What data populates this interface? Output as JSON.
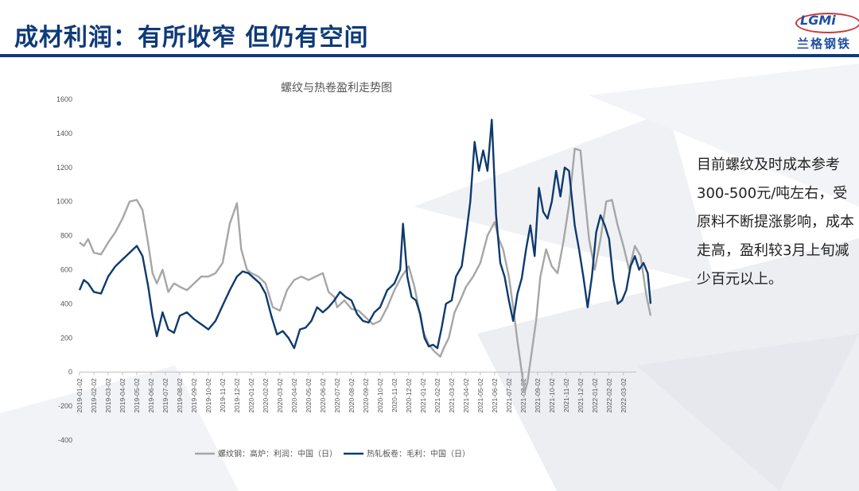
{
  "page": {
    "title": "成材利润：有所收窄  但仍有空间",
    "logo_top": "LGMi",
    "logo_bottom": "兰格钢铁",
    "side_text": "目前螺纹及时成本参考300-500元/吨左右，受原料不断提涨影响，成本走高，盈利较3月上旬减少百元以上。",
    "colors": {
      "brand": "#0e3a78",
      "rebar": "#a6a6a6",
      "hrc": "#0e3a6e"
    }
  },
  "chart_data": {
    "type": "line",
    "title": "螺纹与热卷盈利走势图",
    "ylim": [
      -400,
      1600
    ],
    "yticks": [
      -400,
      -200,
      0,
      200,
      400,
      600,
      800,
      1000,
      1200,
      1400,
      1600
    ],
    "xticks": [
      "2019-01-02",
      "2019-02-02",
      "2019-03-02",
      "2019-04-02",
      "2019-05-02",
      "2019-06-02",
      "2019-07-02",
      "2019-08-02",
      "2019-09-02",
      "2019-10-02",
      "2019-11-02",
      "2019-12-02",
      "2020-01-02",
      "2020-02-02",
      "2020-03-02",
      "2020-04-02",
      "2020-05-02",
      "2020-06-02",
      "2020-07-02",
      "2020-08-02",
      "2020-09-02",
      "2020-10-02",
      "2020-11-02",
      "2020-12-02",
      "2021-01-02",
      "2021-02-02",
      "2021-03-02",
      "2021-04-02",
      "2021-05-02",
      "2021-06-02",
      "2021-07-02",
      "2021-08-02",
      "2021-09-02",
      "2021-10-02",
      "2021-11-02",
      "2021-12-02",
      "2022-01-02",
      "2022-02-02",
      "2022-03-02"
    ],
    "legend_position": "bottom",
    "series": [
      {
        "name": "螺纹钢：高炉：利润：中国（日）",
        "color": "#a6a6a6",
        "points": [
          [
            0,
            760
          ],
          [
            0.3,
            740
          ],
          [
            0.6,
            780
          ],
          [
            1,
            700
          ],
          [
            1.5,
            690
          ],
          [
            2,
            760
          ],
          [
            2.5,
            820
          ],
          [
            3,
            900
          ],
          [
            3.5,
            1000
          ],
          [
            4,
            1010
          ],
          [
            4.4,
            950
          ],
          [
            4.8,
            750
          ],
          [
            5.1,
            580
          ],
          [
            5.4,
            520
          ],
          [
            5.8,
            600
          ],
          [
            6.2,
            470
          ],
          [
            6.6,
            520
          ],
          [
            7,
            500
          ],
          [
            7.5,
            480
          ],
          [
            8,
            520
          ],
          [
            8.5,
            560
          ],
          [
            9,
            560
          ],
          [
            9.5,
            580
          ],
          [
            10,
            640
          ],
          [
            10.5,
            870
          ],
          [
            11,
            990
          ],
          [
            11.3,
            720
          ],
          [
            11.7,
            600
          ],
          [
            12,
            580
          ],
          [
            12.5,
            560
          ],
          [
            13,
            520
          ],
          [
            13.5,
            380
          ],
          [
            14,
            360
          ],
          [
            14.5,
            480
          ],
          [
            15,
            540
          ],
          [
            15.5,
            560
          ],
          [
            16,
            540
          ],
          [
            16.5,
            560
          ],
          [
            17,
            580
          ],
          [
            17.4,
            470
          ],
          [
            17.8,
            440
          ],
          [
            18,
            380
          ],
          [
            18.5,
            420
          ],
          [
            19,
            370
          ],
          [
            19.5,
            360
          ],
          [
            20,
            320
          ],
          [
            20.5,
            280
          ],
          [
            21,
            300
          ],
          [
            21.5,
            380
          ],
          [
            22,
            480
          ],
          [
            22.5,
            560
          ],
          [
            23,
            620
          ],
          [
            23.4,
            500
          ],
          [
            23.8,
            330
          ],
          [
            24,
            240
          ],
          [
            24.4,
            160
          ],
          [
            24.8,
            120
          ],
          [
            25.2,
            90
          ],
          [
            25.5,
            150
          ],
          [
            25.8,
            200
          ],
          [
            26.2,
            350
          ],
          [
            26.6,
            420
          ],
          [
            27,
            500
          ],
          [
            27.5,
            560
          ],
          [
            28,
            640
          ],
          [
            28.5,
            800
          ],
          [
            29,
            880
          ],
          [
            29.3,
            780
          ],
          [
            29.6,
            720
          ],
          [
            30,
            560
          ],
          [
            30.3,
            380
          ],
          [
            30.6,
            180
          ],
          [
            30.9,
            0
          ],
          [
            31.1,
            -120
          ],
          [
            31.3,
            -60
          ],
          [
            31.6,
            120
          ],
          [
            31.9,
            300
          ],
          [
            32.2,
            560
          ],
          [
            32.6,
            720
          ],
          [
            33,
            620
          ],
          [
            33.4,
            580
          ],
          [
            33.8,
            760
          ],
          [
            34.2,
            980
          ],
          [
            34.6,
            1310
          ],
          [
            35,
            1300
          ],
          [
            35.3,
            1030
          ],
          [
            35.6,
            780
          ],
          [
            36,
            600
          ],
          [
            36.4,
            780
          ],
          [
            36.8,
            1000
          ],
          [
            37.2,
            1010
          ],
          [
            37.6,
            860
          ],
          [
            38,
            740
          ],
          [
            38.4,
            600
          ],
          [
            38.8,
            740
          ],
          [
            39.2,
            680
          ],
          [
            39.6,
            450
          ],
          [
            39.9,
            330
          ]
        ]
      },
      {
        "name": "热轧板卷：毛利：中国（日）",
        "color": "#0e3a6e",
        "points": [
          [
            0,
            480
          ],
          [
            0.3,
            540
          ],
          [
            0.6,
            520
          ],
          [
            1,
            470
          ],
          [
            1.5,
            460
          ],
          [
            2,
            560
          ],
          [
            2.5,
            620
          ],
          [
            3,
            660
          ],
          [
            3.5,
            700
          ],
          [
            4,
            740
          ],
          [
            4.4,
            680
          ],
          [
            4.8,
            500
          ],
          [
            5.1,
            330
          ],
          [
            5.4,
            210
          ],
          [
            5.8,
            350
          ],
          [
            6.2,
            250
          ],
          [
            6.6,
            230
          ],
          [
            7,
            330
          ],
          [
            7.5,
            350
          ],
          [
            8,
            310
          ],
          [
            8.5,
            280
          ],
          [
            9,
            250
          ],
          [
            9.5,
            300
          ],
          [
            10,
            390
          ],
          [
            10.5,
            480
          ],
          [
            11,
            560
          ],
          [
            11.4,
            590
          ],
          [
            11.8,
            580
          ],
          [
            12.2,
            550
          ],
          [
            12.6,
            520
          ],
          [
            13,
            460
          ],
          [
            13.4,
            330
          ],
          [
            13.8,
            220
          ],
          [
            14.2,
            240
          ],
          [
            14.6,
            200
          ],
          [
            15,
            140
          ],
          [
            15.4,
            250
          ],
          [
            15.8,
            260
          ],
          [
            16.2,
            300
          ],
          [
            16.6,
            380
          ],
          [
            17,
            350
          ],
          [
            17.4,
            380
          ],
          [
            17.8,
            420
          ],
          [
            18.2,
            470
          ],
          [
            18.6,
            440
          ],
          [
            19,
            420
          ],
          [
            19.4,
            340
          ],
          [
            19.8,
            300
          ],
          [
            20.2,
            290
          ],
          [
            20.6,
            350
          ],
          [
            21,
            380
          ],
          [
            21.5,
            480
          ],
          [
            22,
            520
          ],
          [
            22.4,
            600
          ],
          [
            22.6,
            870
          ],
          [
            22.9,
            560
          ],
          [
            23.2,
            440
          ],
          [
            23.5,
            420
          ],
          [
            23.8,
            340
          ],
          [
            24.1,
            200
          ],
          [
            24.4,
            150
          ],
          [
            24.7,
            160
          ],
          [
            25,
            140
          ],
          [
            25.3,
            260
          ],
          [
            25.6,
            400
          ],
          [
            26,
            420
          ],
          [
            26.3,
            560
          ],
          [
            26.7,
            620
          ],
          [
            27,
            800
          ],
          [
            27.3,
            1000
          ],
          [
            27.6,
            1350
          ],
          [
            27.9,
            1180
          ],
          [
            28.2,
            1300
          ],
          [
            28.5,
            1180
          ],
          [
            28.8,
            1480
          ],
          [
            29.1,
            920
          ],
          [
            29.4,
            640
          ],
          [
            29.7,
            560
          ],
          [
            30,
            420
          ],
          [
            30.3,
            300
          ],
          [
            30.6,
            460
          ],
          [
            30.9,
            550
          ],
          [
            31.2,
            720
          ],
          [
            31.5,
            860
          ],
          [
            31.8,
            680
          ],
          [
            32.1,
            1080
          ],
          [
            32.4,
            940
          ],
          [
            32.7,
            900
          ],
          [
            33,
            1000
          ],
          [
            33.3,
            1180
          ],
          [
            33.6,
            1030
          ],
          [
            33.9,
            1200
          ],
          [
            34.2,
            1180
          ],
          [
            34.6,
            860
          ],
          [
            34.9,
            720
          ],
          [
            35.2,
            560
          ],
          [
            35.5,
            380
          ],
          [
            35.8,
            560
          ],
          [
            36.1,
            820
          ],
          [
            36.4,
            920
          ],
          [
            36.7,
            860
          ],
          [
            37,
            780
          ],
          [
            37.3,
            540
          ],
          [
            37.6,
            400
          ],
          [
            37.9,
            420
          ],
          [
            38.2,
            480
          ],
          [
            38.5,
            620
          ],
          [
            38.8,
            680
          ],
          [
            39.1,
            600
          ],
          [
            39.4,
            640
          ],
          [
            39.7,
            580
          ],
          [
            39.9,
            400
          ]
        ]
      }
    ]
  }
}
